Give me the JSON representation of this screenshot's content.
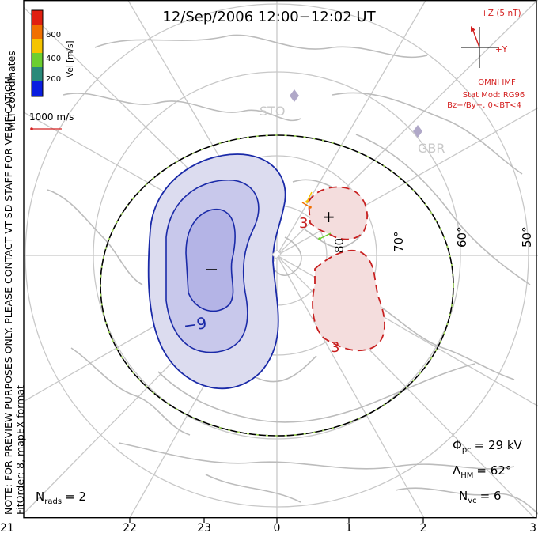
{
  "title": "12/Sep/2006 12:00−12:02 UT",
  "coord_system": "MLT coordinates",
  "colorbar": {
    "label": "Vel [m/s]",
    "ticks": [
      "600",
      "400",
      "200"
    ],
    "colors": [
      "#0a1ee0",
      "#2a8a7a",
      "#6ccf30",
      "#f5c400",
      "#f07000",
      "#e02010"
    ]
  },
  "velocity_scale": "1000 m/s",
  "imf": {
    "z_label": "+Z (5 nT)",
    "y_label": "+Y",
    "source": "OMNI IMF",
    "model": "Stat Mod: RG96",
    "condition": "Bz+/By−, 0<BT<4"
  },
  "stations": [
    "STO",
    "GBR"
  ],
  "latitude_labels": [
    "80",
    "70°",
    "60°",
    "50°"
  ],
  "mlt_labels": [
    "21",
    "22",
    "23",
    "0",
    "1",
    "2",
    "3"
  ],
  "contours": {
    "negative_label": "−9",
    "positive_label_a": "3",
    "positive_label_b": "3",
    "min_marker": "−",
    "max_marker": "+"
  },
  "stats": {
    "phi_pc": "= 29 kV",
    "lambda_hm": "= 62°",
    "n_vc": "= 6",
    "n_rads": "= 2"
  },
  "notes": {
    "preview": "NOTE: FOR PREVIEW PURPOSES ONLY. PLEASE CONTACT VT-SD STAFF FOR VERIFICATION.",
    "fit": "FitOrder: 8, mapEX format"
  },
  "colors": {
    "frame": "#000000",
    "grid": "#c8c8c8",
    "negative_fill": "#dcdcef",
    "negative_inner": "#b8b8e8",
    "negative_line": "#1a2aa8",
    "positive_fill": "#f4dddd",
    "positive_line": "#c82020",
    "hm_boundary": "#000000",
    "hm_dash": "#a8e060"
  }
}
